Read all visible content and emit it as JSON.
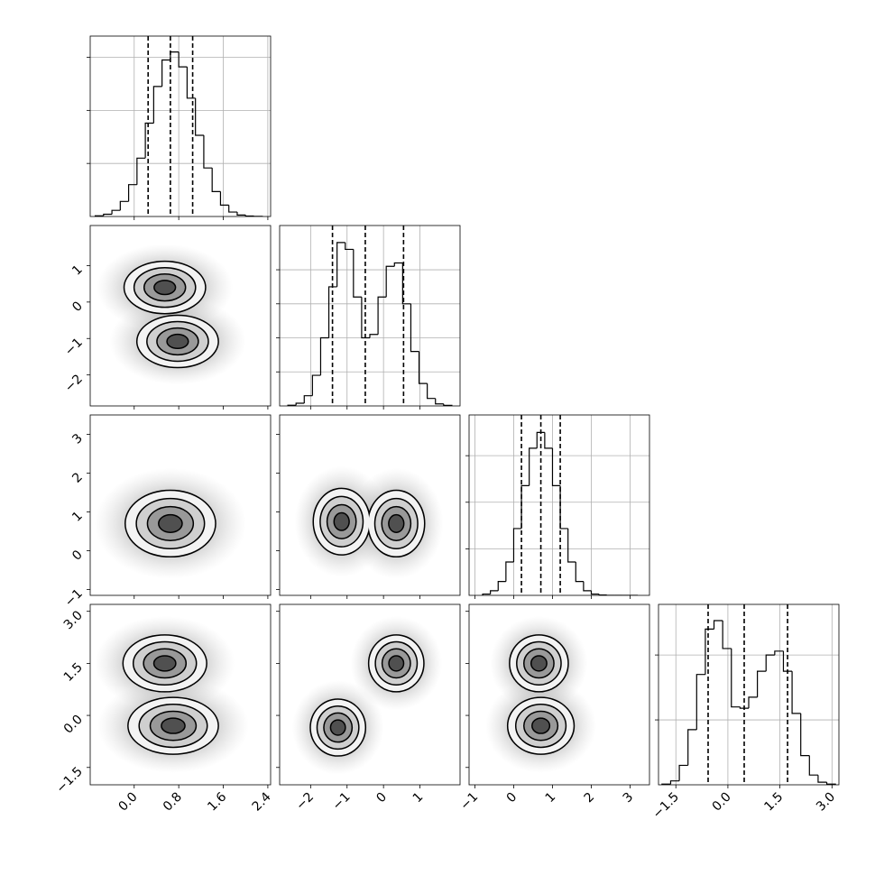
{
  "chart_data": {
    "type": "corner",
    "color": "#000000",
    "grid": true,
    "parameters": [
      {
        "range": [
          -0.79,
          2.45
        ],
        "ticks": [
          {
            "value": 0,
            "label": "0.0"
          },
          0.8,
          1.6,
          2.4
        ],
        "bins": [
          -0.7,
          -0.55,
          -0.4,
          -0.25,
          -0.1,
          0.05,
          0.2,
          0.35,
          0.5,
          0.65,
          0.8,
          0.95,
          1.1,
          1.25,
          1.4,
          1.55,
          1.7,
          1.85,
          2.0,
          2.15,
          2.3
        ],
        "counts": [
          13,
          42,
          116,
          284,
          600,
          1100,
          1760,
          2450,
          2950,
          3100,
          2820,
          2230,
          1530,
          915,
          470,
          215,
          84,
          28,
          8,
          2
        ],
        "count_lim": [
          0,
          3400
        ],
        "count_ticks": [
          1000,
          2000,
          3000
        ],
        "quantiles": [
          0.25,
          0.65,
          1.05
        ],
        "joint": []
      },
      {
        "range": [
          -2.85,
          2.1
        ],
        "ticks": [
          {
            "value": -2,
            "label": "−2"
          },
          {
            "value": -1,
            "label": "−1"
          },
          0,
          1
        ],
        "bins": [
          -2.625,
          -2.4,
          -2.175,
          -1.95,
          -1.725,
          -1.5,
          -1.275,
          -1.05,
          -0.825,
          -0.6,
          -0.375,
          -0.15,
          0.075,
          0.3,
          0.525,
          0.75,
          0.975,
          1.2,
          1.425,
          1.65,
          1.875
        ],
        "counts": [
          10,
          40,
          150,
          450,
          1000,
          1750,
          2400,
          2300,
          1600,
          1000,
          1050,
          1600,
          2050,
          2100,
          1500,
          800,
          330,
          110,
          30,
          8
        ],
        "count_lim": [
          0,
          2650
        ],
        "count_ticks": [
          500,
          1000,
          1500,
          2000
        ],
        "quantiles": [
          -1.4,
          -0.5,
          0.55
        ],
        "joint": [
          {
            "modes": [
              {
                "center": [
                  0.55,
                  0.4
                ],
                "sd": [
                  0.36,
                  0.35
                ]
              },
              {
                "center": [
                  0.78,
                  -1.08
                ],
                "sd": [
                  0.36,
                  0.35
                ]
              }
            ]
          }
        ]
      },
      {
        "range": [
          -1.15,
          3.5
        ],
        "ticks": [
          {
            "value": -1,
            "label": "−1"
          },
          0,
          1,
          2,
          3
        ],
        "bins": [
          -0.8,
          -0.6,
          -0.4,
          -0.2,
          0.0,
          0.2,
          0.4,
          0.6,
          0.8,
          1.0,
          1.2,
          1.4,
          1.6,
          1.8,
          2.0,
          2.2,
          2.4,
          2.6,
          2.8,
          3.0,
          3.2
        ],
        "counts": [
          22,
          79,
          238,
          574,
          1148,
          1885,
          2529,
          2800,
          2529,
          1885,
          1148,
          574,
          238,
          79,
          22,
          6,
          1,
          0,
          0,
          0
        ],
        "count_lim": [
          0,
          3100
        ],
        "count_ticks": [
          800,
          1600,
          2400
        ],
        "quantiles": [
          0.2,
          0.7,
          1.2
        ],
        "joint": [
          {
            "modes": [
              {
                "center": [
                  0.65,
                  0.7
                ],
                "sd": [
                  0.4,
                  0.42
                ]
              }
            ]
          },
          {
            "modes": [
              {
                "center": [
                  -1.15,
                  0.75
                ],
                "sd": [
                  0.38,
                  0.42
                ]
              },
              {
                "center": [
                  0.35,
                  0.7
                ],
                "sd": [
                  0.38,
                  0.42
                ]
              }
            ]
          }
        ]
      },
      {
        "range": [
          -2.0,
          3.2
        ],
        "ticks": [
          {
            "value": -1.5,
            "label": "−1.5"
          },
          {
            "value": 0,
            "label": "0.0"
          },
          1.5,
          {
            "value": 3,
            "label": "3.0"
          }
        ],
        "bins": [
          -1.9,
          -1.65,
          -1.4,
          -1.15,
          -0.9,
          -0.65,
          -0.4,
          -0.15,
          0.1,
          0.35,
          0.6,
          0.85,
          1.1,
          1.35,
          1.6,
          1.85,
          2.1,
          2.35,
          2.6,
          2.85,
          3.1
        ],
        "counts": [
          10,
          60,
          300,
          850,
          1700,
          2400,
          2530,
          2100,
          1200,
          1180,
          1350,
          1750,
          2000,
          2060,
          1750,
          1100,
          450,
          150,
          40,
          10
        ],
        "count_lim": [
          0,
          2780
        ],
        "count_ticks": [
          1000,
          2000
        ],
        "quantiles": [
          -0.57,
          0.47,
          1.72
        ],
        "joint": [
          {
            "modes": [
              {
                "center": [
                  0.55,
                  1.5
                ],
                "sd": [
                  0.37,
                  0.4
                ]
              },
              {
                "center": [
                  0.7,
                  -0.3
                ],
                "sd": [
                  0.4,
                  0.4
                ]
              }
            ]
          },
          {
            "modes": [
              {
                "center": [
                  -1.25,
                  -0.35
                ],
                "sd": [
                  0.37,
                  0.4
                ]
              },
              {
                "center": [
                  0.35,
                  1.5
                ],
                "sd": [
                  0.37,
                  0.4
                ]
              }
            ]
          },
          {
            "modes": [
              {
                "center": [
                  0.65,
                  1.5
                ],
                "sd": [
                  0.37,
                  0.4
                ]
              },
              {
                "center": [
                  0.7,
                  -0.3
                ],
                "sd": [
                  0.42,
                  0.4
                ]
              }
            ]
          }
        ]
      }
    ]
  }
}
